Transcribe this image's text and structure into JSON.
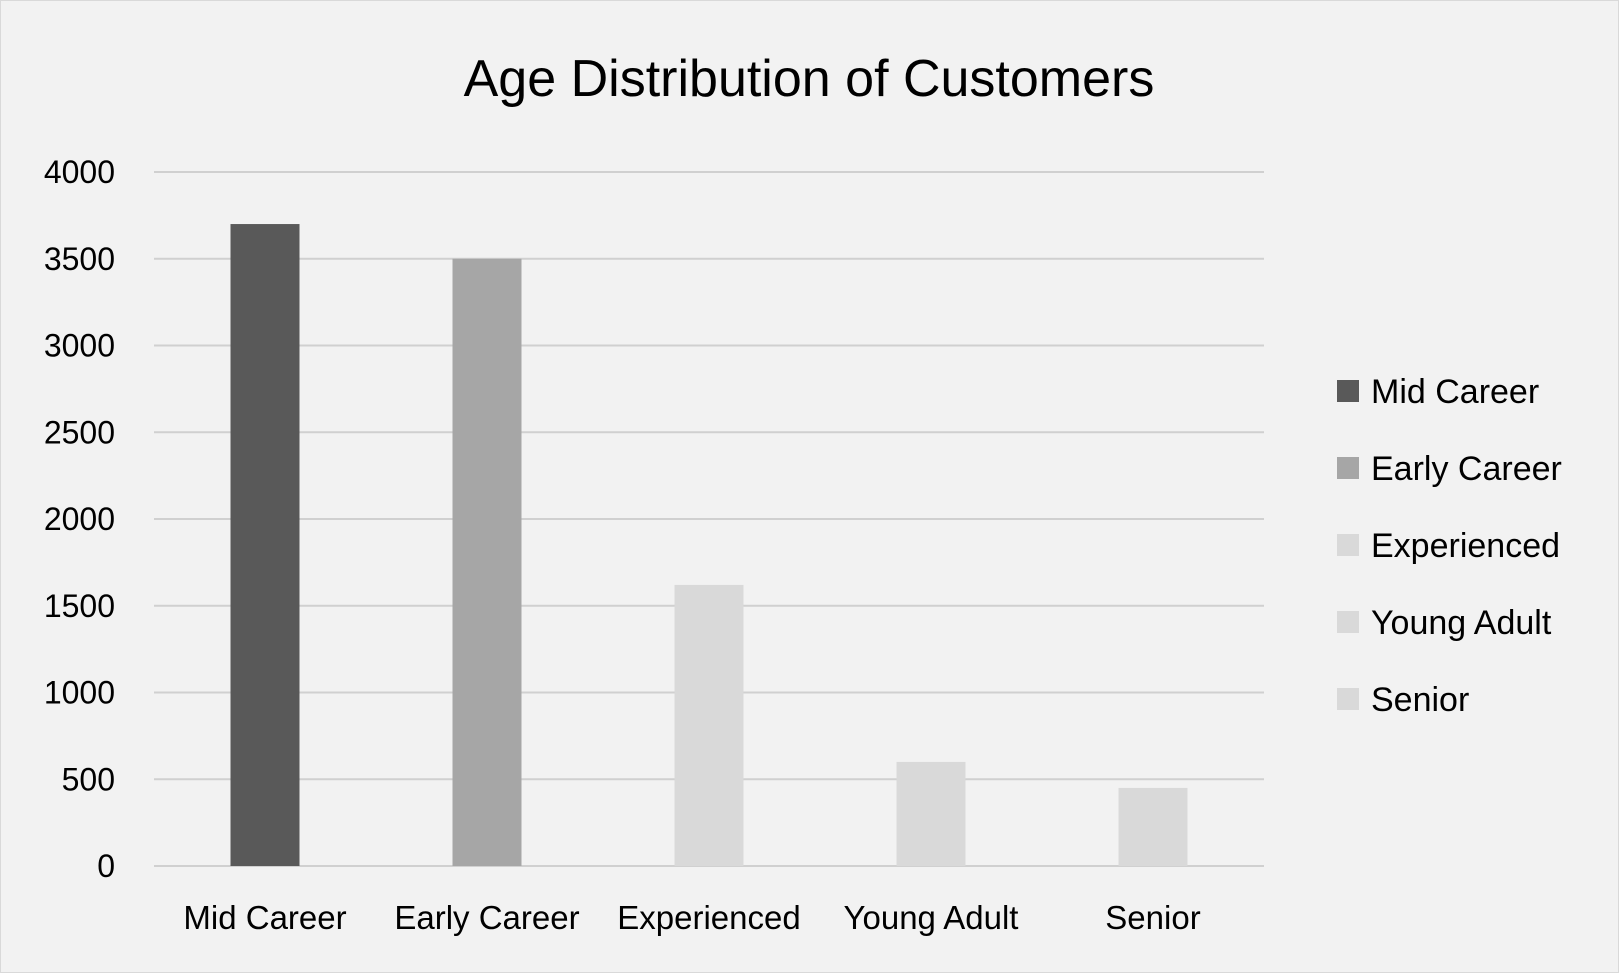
{
  "chart_data": {
    "type": "bar",
    "title": "Age Distribution of Customers",
    "xlabel": "",
    "ylabel": "",
    "categories": [
      "Mid Career",
      "Early Career",
      "Experienced",
      "Young Adult",
      "Senior"
    ],
    "values": [
      3700,
      3500,
      1620,
      600,
      450
    ],
    "colors": [
      "#595959",
      "#a6a6a6",
      "#d9d9d9",
      "#d9d9d9",
      "#d9d9d9"
    ],
    "ylim": [
      0,
      4000
    ],
    "yticks": [
      0,
      500,
      1000,
      1500,
      2000,
      2500,
      3000,
      3500,
      4000
    ],
    "grid": true,
    "legend": {
      "position": "right",
      "entries": [
        {
          "label": "Mid Career",
          "color": "#595959"
        },
        {
          "label": "Early Career",
          "color": "#a6a6a6"
        },
        {
          "label": "Experienced",
          "color": "#d9d9d9"
        },
        {
          "label": "Young Adult",
          "color": "#d9d9d9"
        },
        {
          "label": "Senior",
          "color": "#d9d9d9"
        }
      ]
    },
    "background_color": "#f2f2f2",
    "gridline_color": "#d0d0d0"
  }
}
